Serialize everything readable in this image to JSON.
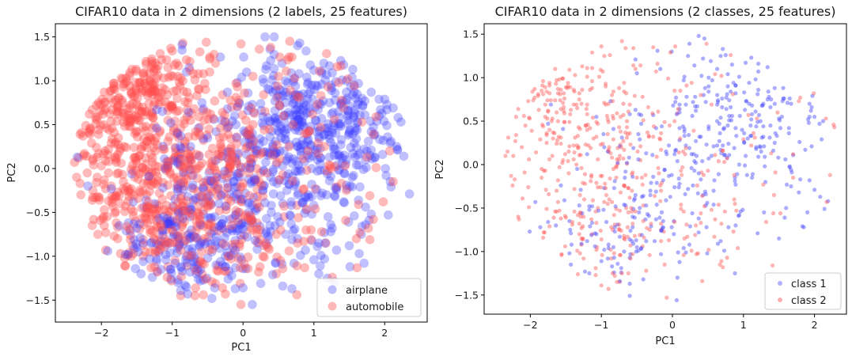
{
  "chart_data": [
    {
      "type": "scatter",
      "title": "CIFAR10 data in 2 dimensions (2 labels, 25 features)",
      "xlabel": "PC1",
      "ylabel": "PC2",
      "xlim": [
        -2.65,
        2.6
      ],
      "ylim": [
        -1.75,
        1.65
      ],
      "xticks": [
        "−2",
        "−1",
        "0",
        "1",
        "2"
      ],
      "yticks": [
        "−1.5",
        "−1.0",
        "−0.5",
        "0.0",
        "0.5",
        "1.0",
        "1.5"
      ],
      "grid": false,
      "legend": "lower-right",
      "series": [
        {
          "name": "airplane",
          "color": "#3b3bff",
          "points": []
        },
        {
          "name": "automobile",
          "color": "#ff4d4d",
          "points": []
        }
      ]
    },
    {
      "type": "scatter",
      "title": "CIFAR10 data in 2 dimensions (2 classes, 25 features)",
      "xlabel": "PC1",
      "ylabel": "PC2",
      "xlim": [
        -2.65,
        2.45
      ],
      "ylim": [
        -1.72,
        1.62
      ],
      "xticks": [
        "−2",
        "−1",
        "0",
        "1",
        "2"
      ],
      "yticks": [
        "−1.5",
        "−1.0",
        "−0.5",
        "0.0",
        "0.5",
        "1.0",
        "1.5"
      ],
      "grid": false,
      "legend": "lower-right",
      "series": [
        {
          "name": "class 1",
          "color": "#3b3bff",
          "points": []
        },
        {
          "name": "class 2",
          "color": "#ff4d4d",
          "points": []
        }
      ]
    }
  ]
}
